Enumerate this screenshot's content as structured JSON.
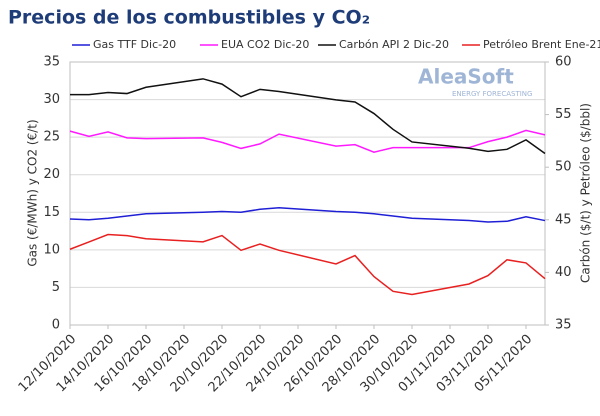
{
  "chart_data": {
    "type": "line",
    "title": "Precios de los combustibles y CO₂",
    "annotations": [
      "AleaSoft",
      "ENERGY FORECASTING"
    ],
    "y_label": "Gas (€/MWh) y CO2 (€/t)",
    "y2_label": "Carbón ($/t) y Petróleo ($/bbl)",
    "x": [
      "12/10/2020",
      "13/10/2020",
      "14/10/2020",
      "15/10/2020",
      "16/10/2020",
      "19/10/2020",
      "20/10/2020",
      "21/10/2020",
      "22/10/2020",
      "23/10/2020",
      "26/10/2020",
      "27/10/2020",
      "28/10/2020",
      "29/10/2020",
      "30/10/2020",
      "02/11/2020",
      "03/11/2020",
      "04/11/2020",
      "05/11/2020",
      "06/11/2020"
    ],
    "xlim": [
      "12/10/2020",
      "06/11/2020"
    ],
    "xticks": [
      "12/10/2020",
      "14/10/2020",
      "16/10/2020",
      "18/10/2020",
      "20/10/2020",
      "22/10/2020",
      "24/10/2020",
      "26/10/2020",
      "28/10/2020",
      "30/10/2020",
      "01/11/2020",
      "03/11/2020",
      "05/11/2020"
    ],
    "ylim": [
      0,
      35
    ],
    "yticks": [
      0,
      5,
      10,
      15,
      20,
      25,
      30,
      35
    ],
    "y2lim": [
      35,
      60
    ],
    "y2ticks": [
      35,
      40,
      45,
      50,
      55,
      60
    ],
    "grid": true,
    "series": [
      {
        "name": "Gas TTF Dic-20",
        "color": "#1f1fd6",
        "values": [
          14.1,
          14.0,
          14.2,
          14.5,
          14.8,
          15.0,
          15.1,
          15.0,
          15.4,
          15.6,
          15.1,
          15.0,
          14.8,
          14.5,
          14.2,
          13.9,
          13.7,
          13.8,
          14.4,
          13.9
        ]
      },
      {
        "name": "EUA CO2 Dic-20",
        "color": "#ff19ff",
        "values": [
          25.8,
          25.1,
          25.7,
          24.9,
          24.8,
          24.9,
          24.3,
          23.5,
          24.1,
          25.4,
          23.8,
          24.0,
          23.0,
          23.6,
          23.6,
          23.6,
          24.4,
          25.0,
          25.9,
          25.3
        ]
      },
      {
        "name": "Carbón API 2 Dic-20",
        "color": "#111111",
        "axis": "y2",
        "values": [
          56.9,
          56.9,
          57.1,
          57.0,
          57.6,
          58.4,
          57.9,
          56.7,
          57.4,
          57.2,
          56.4,
          56.2,
          55.1,
          53.6,
          52.4,
          51.8,
          51.5,
          51.7,
          52.6,
          51.3
        ]
      },
      {
        "name": "Petróleo Brent Ene-21",
        "color": "#e82020",
        "axis": "y2",
        "values": [
          42.2,
          42.9,
          43.6,
          43.5,
          43.2,
          42.9,
          43.5,
          42.1,
          42.7,
          42.1,
          40.8,
          41.6,
          39.6,
          38.2,
          37.9,
          38.9,
          39.7,
          41.2,
          40.9,
          39.4
        ]
      }
    ]
  }
}
